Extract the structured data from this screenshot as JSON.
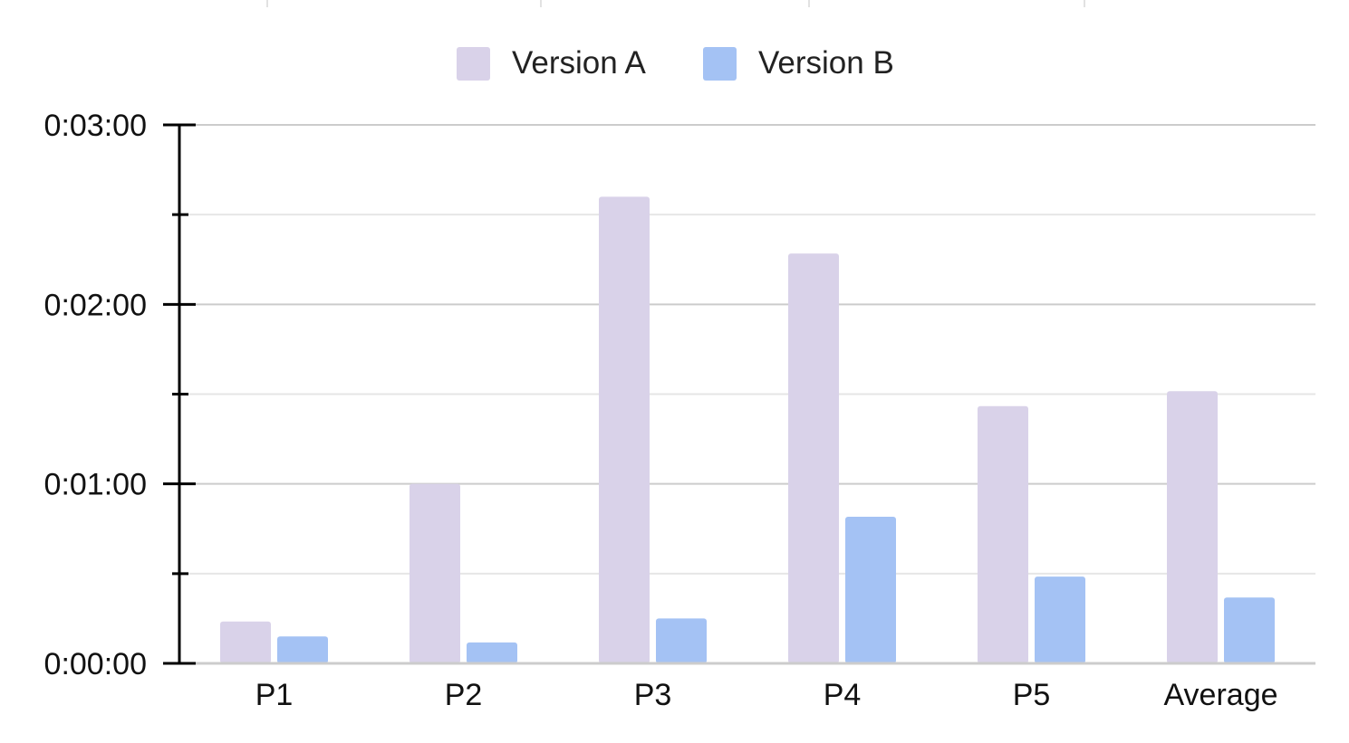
{
  "chart_data": {
    "type": "bar",
    "categories": [
      "P1",
      "P2",
      "P3",
      "P4",
      "P5",
      "Average"
    ],
    "series": [
      {
        "name": "Version A",
        "color": "#d9d2e9",
        "values": [
          14,
          60,
          156,
          137,
          86,
          91
        ]
      },
      {
        "name": "Version B",
        "color": "#a4c2f4",
        "values": [
          9,
          7,
          15,
          49,
          29,
          22
        ]
      }
    ],
    "value_unit": "seconds",
    "ylim": [
      0,
      180
    ],
    "yticks": [
      {
        "value": 0,
        "label": "0:00:00"
      },
      {
        "value": 60,
        "label": "0:01:00"
      },
      {
        "value": 120,
        "label": "0:02:00"
      },
      {
        "value": 180,
        "label": "0:03:00"
      }
    ],
    "minor_gridlines": [
      30,
      90,
      150
    ],
    "legend_position": "top-center",
    "grid": true,
    "gridline_color": "#cccccc",
    "axis_color": "#000000"
  }
}
